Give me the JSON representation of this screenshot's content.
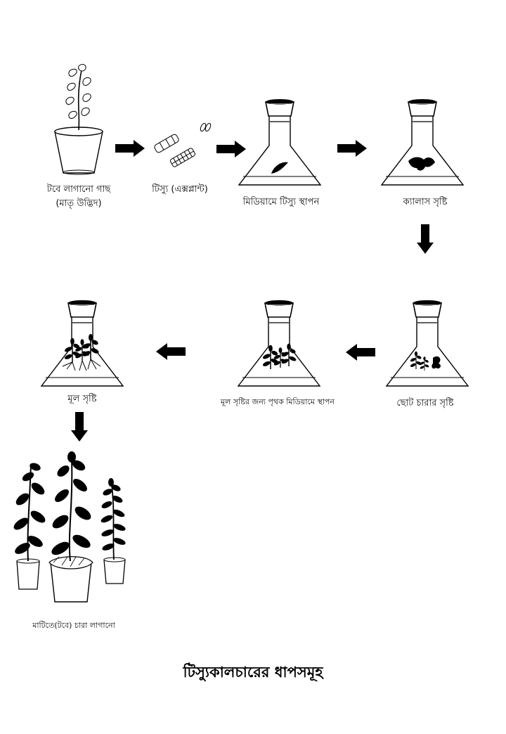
{
  "title": "টিস্যুকালচারের ধাপসমূহ",
  "steps": {
    "mother_plant": {
      "line1": "টবে লাগানো গাছ",
      "line2": "(মাতৃ উদ্ভিদ)"
    },
    "explant": "টিস্যু (এক্সপ্লান্ট)",
    "media": "মিডিয়ামে টিস্যু স্থাপন",
    "callus": "ক্যালাস সৃষ্টি",
    "seedling": "ছোট চারার সৃষ্টি",
    "root_media": "মূল সৃষ্টির জন্য পৃথক মিডিয়ামে স্থাপন",
    "root": "মূল সৃষ্টি",
    "planting": "মাটিতে(টবে) চারা লাগানো"
  },
  "colors": {
    "ink": "#000000",
    "background": "#ffffff"
  }
}
